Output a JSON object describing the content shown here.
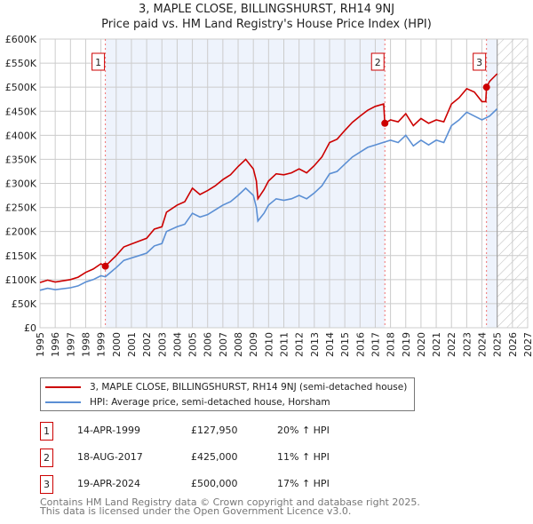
{
  "chart_data": {
    "type": "line",
    "title": "3, MAPLE CLOSE, BILLINGSHURST, RH14 9NJ",
    "subtitle": "Price paid vs. HM Land Registry's House Price Index (HPI)",
    "xlim": [
      1995,
      2027
    ],
    "ylim": [
      0,
      600000
    ],
    "x_ticks": [
      "1995",
      "1996",
      "1997",
      "1998",
      "1999",
      "2000",
      "2001",
      "2002",
      "2003",
      "2004",
      "2005",
      "2006",
      "2007",
      "2008",
      "2009",
      "2010",
      "2011",
      "2012",
      "2013",
      "2014",
      "2015",
      "2016",
      "2017",
      "2018",
      "2019",
      "2020",
      "2021",
      "2022",
      "2023",
      "2024",
      "2025",
      "2026",
      "2027"
    ],
    "y_ticks": [
      {
        "v": 0,
        "label": "£0"
      },
      {
        "v": 50000,
        "label": "£50K"
      },
      {
        "v": 100000,
        "label": "£100K"
      },
      {
        "v": 150000,
        "label": "£150K"
      },
      {
        "v": 200000,
        "label": "£200K"
      },
      {
        "v": 250000,
        "label": "£250K"
      },
      {
        "v": 300000,
        "label": "£300K"
      },
      {
        "v": 350000,
        "label": "£350K"
      },
      {
        "v": 400000,
        "label": "£400K"
      },
      {
        "v": 450000,
        "label": "£450K"
      },
      {
        "v": 500000,
        "label": "£500K"
      },
      {
        "v": 550000,
        "label": "£550K"
      },
      {
        "v": 600000,
        "label": "£600K"
      }
    ],
    "grid": true,
    "forecast_from": 2025.0,
    "series": [
      {
        "name": "3, MAPLE CLOSE, BILLINGSHURST, RH14 9NJ (semi-detached house)",
        "color": "#cc0000",
        "x": [
          1995,
          1995.5,
          1996,
          1997,
          1997.5,
          1998,
          1998.5,
          1999,
          1999.29,
          2000,
          2000.5,
          2001,
          2001.5,
          2002,
          2002.5,
          2003,
          2003.3,
          2004,
          2004.5,
          2005,
          2005.5,
          2006,
          2006.5,
          2007,
          2007.5,
          2008,
          2008.5,
          2009,
          2009.2,
          2009.3,
          2009.7,
          2010,
          2010.5,
          2011,
          2011.5,
          2012,
          2012.5,
          2013,
          2013.5,
          2014,
          2014.5,
          2015,
          2015.5,
          2016,
          2016.5,
          2017,
          2017.55,
          2017.63,
          2018,
          2018.5,
          2019,
          2019.5,
          2020,
          2020.5,
          2021,
          2021.5,
          2022,
          2022.5,
          2023,
          2023.5,
          2024,
          2024.25,
          2024.3,
          2024.5,
          2025
        ],
        "y": [
          94000,
          99000,
          95000,
          100000,
          105000,
          115000,
          122000,
          133000,
          127950,
          150000,
          168000,
          174000,
          180000,
          186000,
          205000,
          210000,
          240000,
          255000,
          262000,
          290000,
          277000,
          285000,
          295000,
          308000,
          318000,
          335000,
          350000,
          330000,
          305000,
          268000,
          287000,
          305000,
          320000,
          318000,
          322000,
          330000,
          322000,
          337000,
          355000,
          385000,
          392000,
          410000,
          427000,
          440000,
          452000,
          460000,
          465000,
          425000,
          432000,
          428000,
          445000,
          420000,
          435000,
          425000,
          432000,
          428000,
          465000,
          478000,
          497000,
          490000,
          470000,
          470000,
          500000,
          512000,
          528000
        ]
      },
      {
        "name": "HPI: Average price, semi-detached house, Horsham",
        "color": "#5b8fd4",
        "x": [
          1995,
          1995.5,
          1996,
          1997,
          1997.5,
          1998,
          1998.5,
          1999,
          1999.29,
          2000,
          2000.5,
          2001,
          2001.5,
          2002,
          2002.5,
          2003,
          2003.3,
          2004,
          2004.5,
          2005,
          2005.5,
          2006,
          2006.5,
          2007,
          2007.5,
          2008,
          2008.5,
          2009,
          2009.2,
          2009.3,
          2009.7,
          2010,
          2010.5,
          2011,
          2011.5,
          2012,
          2012.5,
          2013,
          2013.5,
          2014,
          2014.5,
          2015,
          2015.5,
          2016,
          2016.5,
          2017,
          2017.5,
          2018,
          2018.5,
          2019,
          2019.5,
          2020,
          2020.5,
          2021,
          2021.5,
          2022,
          2022.5,
          2023,
          2023.5,
          2024,
          2024.5,
          2025
        ],
        "y": [
          78000,
          82000,
          79000,
          83000,
          87000,
          95000,
          100000,
          108000,
          106000,
          125000,
          140000,
          145000,
          150000,
          155000,
          170000,
          175000,
          200000,
          210000,
          215000,
          238000,
          230000,
          235000,
          245000,
          255000,
          262000,
          275000,
          290000,
          275000,
          250000,
          222000,
          238000,
          255000,
          268000,
          265000,
          268000,
          275000,
          268000,
          280000,
          295000,
          320000,
          325000,
          340000,
          355000,
          365000,
          375000,
          380000,
          385000,
          390000,
          385000,
          400000,
          378000,
          390000,
          380000,
          390000,
          385000,
          420000,
          432000,
          448000,
          440000,
          432000,
          440000,
          455000
        ]
      }
    ],
    "sales": [
      {
        "id": "1",
        "x": 1999.29,
        "date": "14-APR-1999",
        "price": 127950,
        "price_label": "£127,950",
        "hpi": "20% ↑ HPI"
      },
      {
        "id": "2",
        "x": 2017.63,
        "date": "18-AUG-2017",
        "price": 425000,
        "price_label": "£425,000",
        "hpi": "11% ↑ HPI"
      },
      {
        "id": "3",
        "x": 2024.3,
        "date": "19-APR-2024",
        "price": 500000,
        "price_label": "£500,000",
        "hpi": "17% ↑ HPI"
      }
    ],
    "legend_position": "below"
  },
  "footer": {
    "line1": "Contains HM Land Registry data © Crown copyright and database right 2025.",
    "line2": "This data is licensed under the Open Government Licence v3.0."
  }
}
